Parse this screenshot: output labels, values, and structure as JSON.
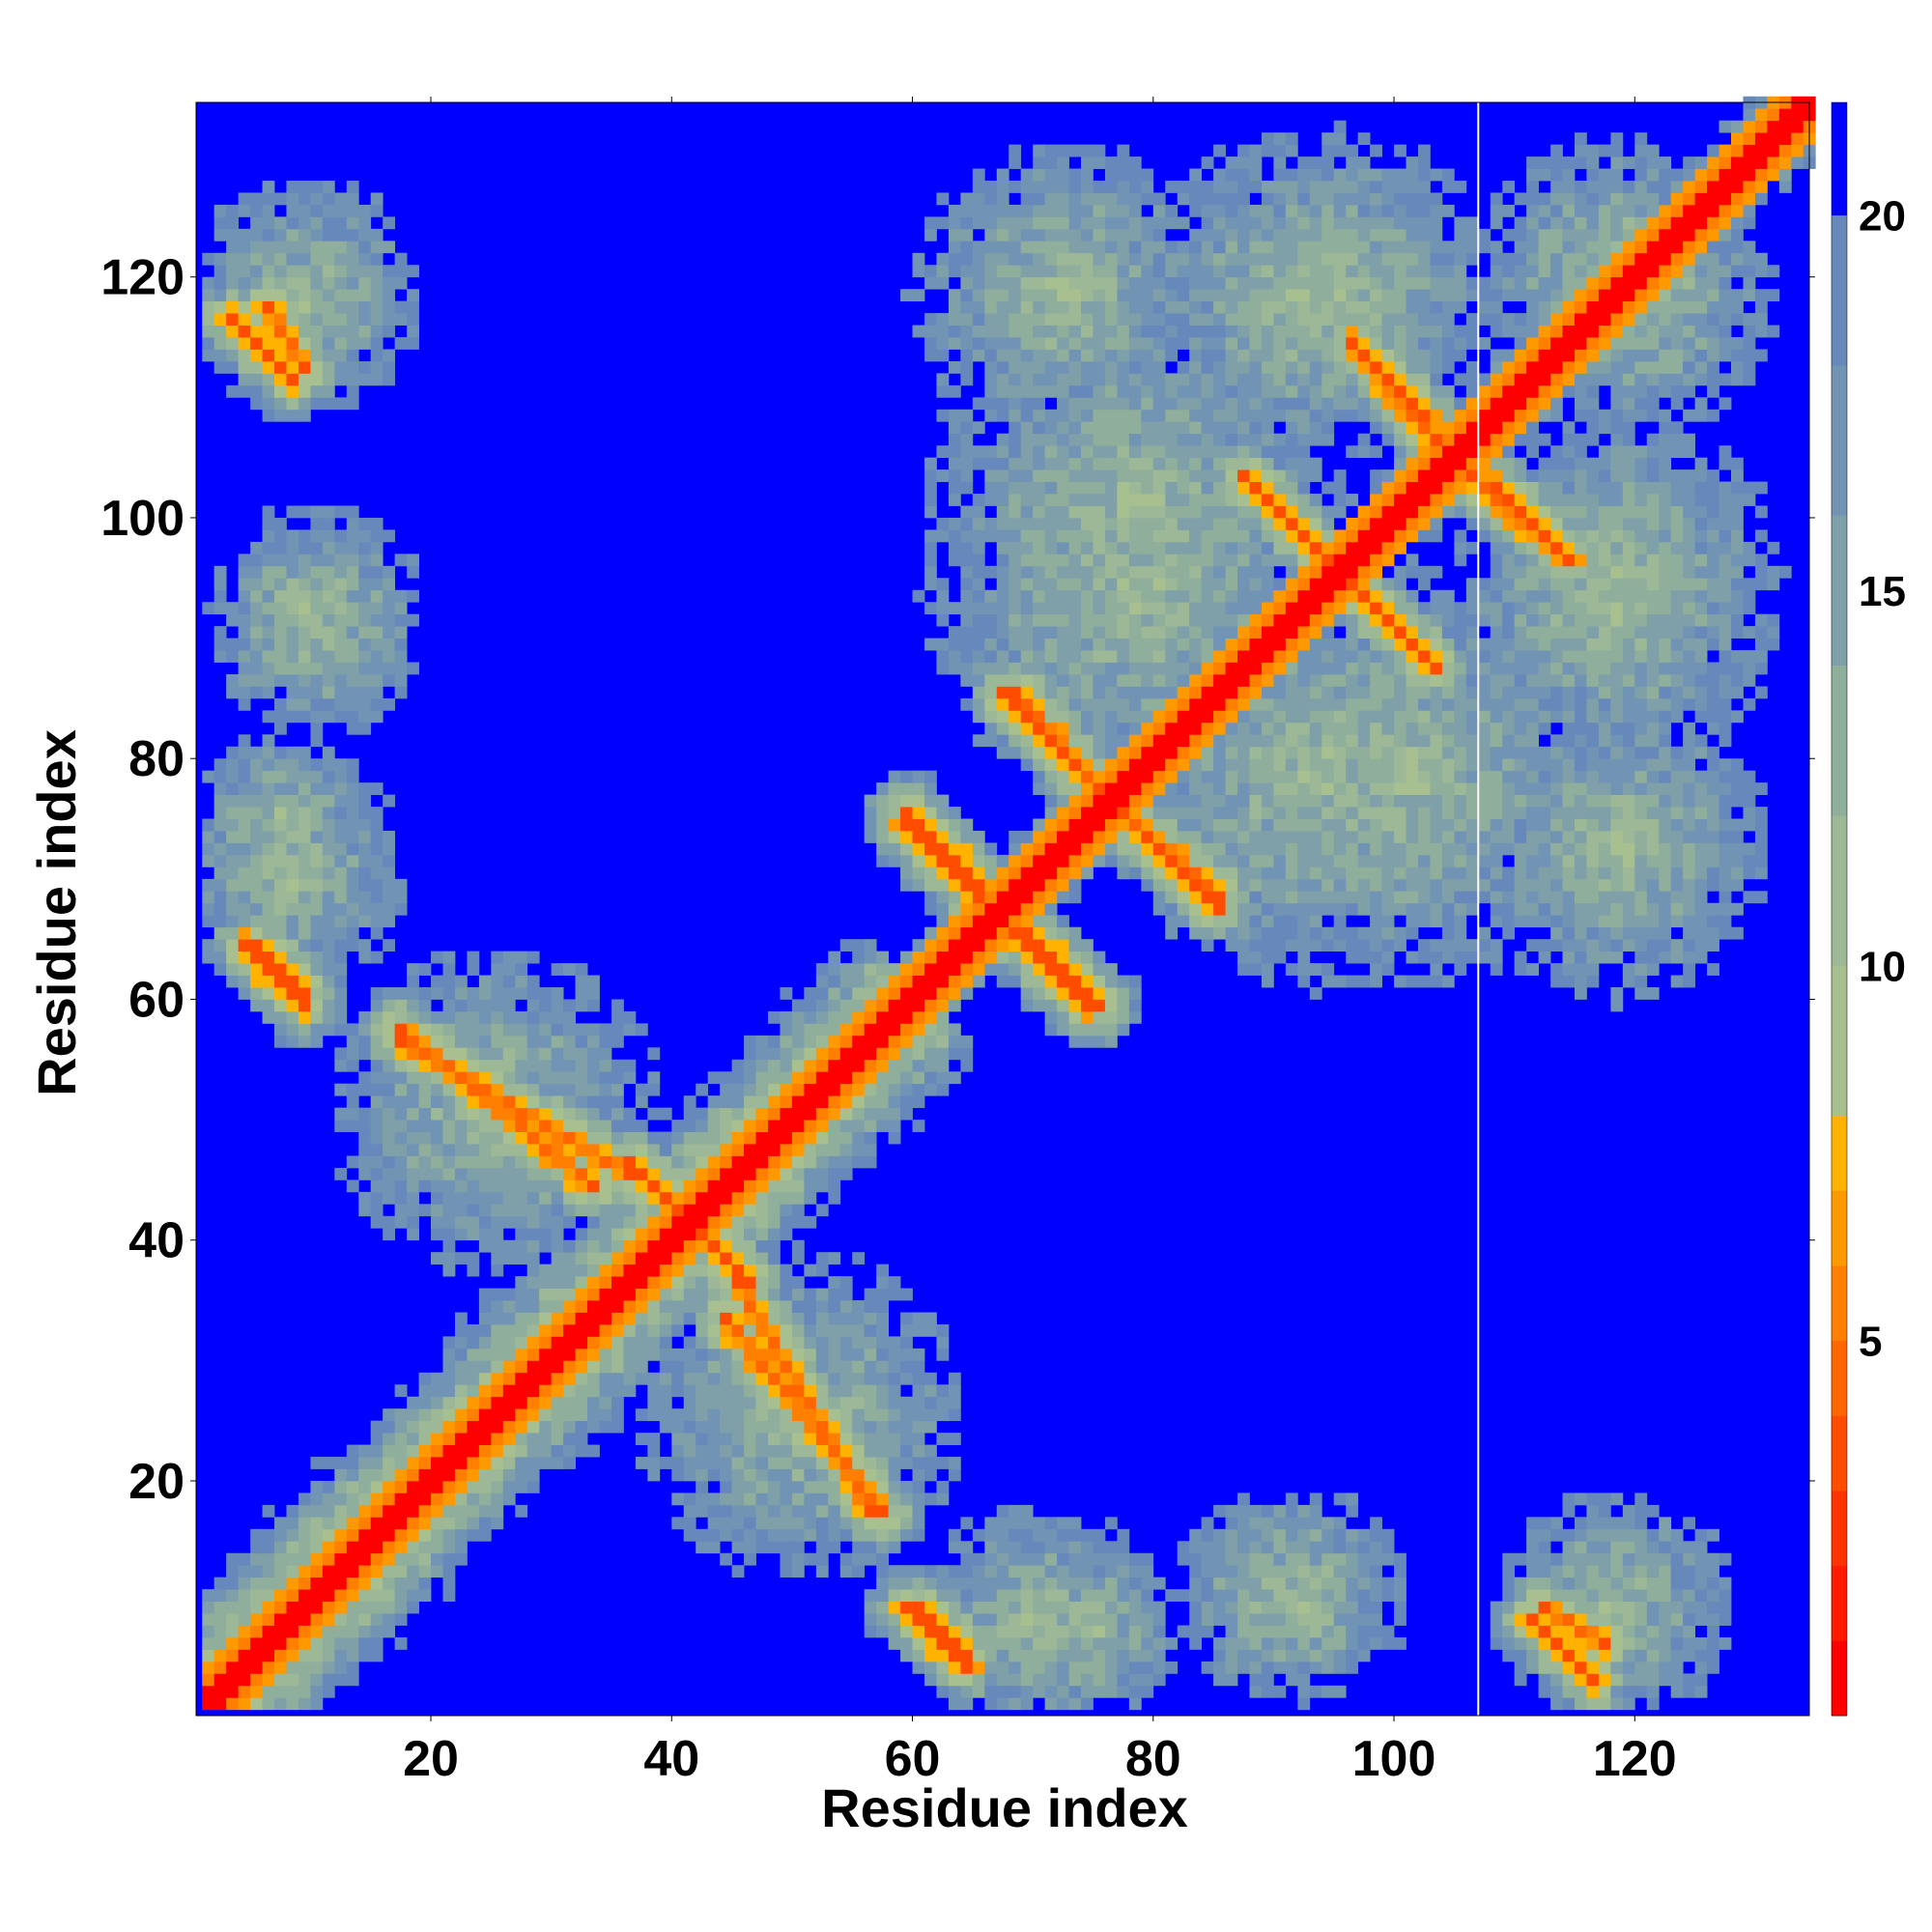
{
  "chart_data": {
    "type": "heatmap",
    "title": "",
    "xlabel": "Residue index",
    "ylabel": "Residue index",
    "xlim": [
      1,
      134
    ],
    "ylim": [
      1,
      134
    ],
    "x_ticks": [
      20,
      40,
      60,
      80,
      100,
      120
    ],
    "y_ticks": [
      20,
      40,
      60,
      80,
      100,
      120
    ],
    "colorbar": {
      "range": [
        0,
        21.5
      ],
      "ticks": [
        5,
        10,
        15,
        20
      ],
      "levels": [
        {
          "max": 1.0,
          "color": "#ff0000"
        },
        {
          "max": 2.0,
          "color": "#ff1a00"
        },
        {
          "max": 3.0,
          "color": "#ff3300"
        },
        {
          "max": 4.0,
          "color": "#ff4d00"
        },
        {
          "max": 5.0,
          "color": "#ff6600"
        },
        {
          "max": 6.0,
          "color": "#ff8000"
        },
        {
          "max": 7.0,
          "color": "#ff9900"
        },
        {
          "max": 8.0,
          "color": "#ffb300"
        },
        {
          "max": 10.0,
          "color": "#a8c090"
        },
        {
          "max": 12.0,
          "color": "#9db896"
        },
        {
          "max": 14.0,
          "color": "#8fae9c"
        },
        {
          "max": 16.0,
          "color": "#7fa0a8"
        },
        {
          "max": 18.0,
          "color": "#7294b4"
        },
        {
          "max": 20.0,
          "color": "#6688bb"
        },
        {
          "max": 21.5,
          "color": "#0000ff"
        }
      ]
    },
    "separator_residue": 107,
    "matrix_description_features": [
      {
        "kind": "band",
        "from": 1,
        "to": 60,
        "width": 8
      },
      {
        "kind": "band",
        "from": 60,
        "to": 134,
        "width": 4
      },
      {
        "kind": "antidiag",
        "x0": 4,
        "y0": 64,
        "x1": 9,
        "y1": 59
      },
      {
        "kind": "antidiag",
        "x0": 6,
        "y0": 117,
        "x1": 9,
        "y1": 112
      },
      {
        "kind": "antidiag",
        "x0": 17,
        "y0": 57,
        "x1": 33,
        "y1": 44
      },
      {
        "kind": "antidiag",
        "x0": 36,
        "y0": 46,
        "x1": 44,
        "y1": 38
      },
      {
        "kind": "antidiag",
        "x0": 45,
        "y0": 36,
        "x1": 56,
        "y1": 17
      },
      {
        "kind": "antidiag",
        "x0": 60,
        "y0": 9,
        "x1": 64,
        "y1": 5
      },
      {
        "kind": "antidiag",
        "x0": 59,
        "y0": 75,
        "x1": 65,
        "y1": 69
      },
      {
        "kind": "antidiag",
        "x0": 67,
        "y0": 85,
        "x1": 73,
        "y1": 79
      },
      {
        "kind": "antidiag",
        "x0": 67,
        "y0": 66,
        "x1": 74,
        "y1": 59
      },
      {
        "kind": "antidiag",
        "x0": 77,
        "y0": 75,
        "x1": 85,
        "y1": 68
      },
      {
        "kind": "antidiag",
        "x0": 87,
        "y0": 103,
        "x1": 94,
        "y1": 96
      },
      {
        "kind": "antidiag",
        "x0": 96,
        "y0": 114,
        "x1": 103,
        "y1": 106
      },
      {
        "kind": "antidiag",
        "x0": 96,
        "y0": 94,
        "x1": 103,
        "y1": 87
      },
      {
        "kind": "antidiag",
        "x0": 108,
        "y0": 102,
        "x1": 114,
        "y1": 96
      },
      {
        "kind": "antidiag",
        "x0": 111,
        "y0": 8,
        "x1": 116,
        "y1": 3
      },
      {
        "kind": "blob",
        "cx": 25,
        "cy": 50,
        "r": 14
      },
      {
        "kind": "blob",
        "cx": 8,
        "cy": 116,
        "r": 8
      },
      {
        "kind": "blob",
        "cx": 10,
        "cy": 92,
        "r": 9
      },
      {
        "kind": "blob",
        "cx": 7,
        "cy": 74,
        "r": 8
      },
      {
        "kind": "blob",
        "cx": 50,
        "cy": 25,
        "r": 14
      },
      {
        "kind": "blob",
        "cx": 70,
        "cy": 8,
        "r": 10
      },
      {
        "kind": "blob",
        "cx": 90,
        "cy": 10,
        "r": 9
      },
      {
        "kind": "blob",
        "cx": 118,
        "cy": 9,
        "r": 10
      },
      {
        "kind": "blob",
        "cx": 72,
        "cy": 118,
        "r": 13
      },
      {
        "kind": "blob",
        "cx": 95,
        "cy": 118,
        "r": 14
      },
      {
        "kind": "blob",
        "cx": 78,
        "cy": 93,
        "r": 18
      },
      {
        "kind": "blob",
        "cx": 100,
        "cy": 78,
        "r": 18
      },
      {
        "kind": "blob",
        "cx": 118,
        "cy": 72,
        "r": 13
      },
      {
        "kind": "blob",
        "cx": 118,
        "cy": 92,
        "r": 14
      },
      {
        "kind": "blob",
        "cx": 120,
        "cy": 118,
        "r": 12
      }
    ]
  }
}
